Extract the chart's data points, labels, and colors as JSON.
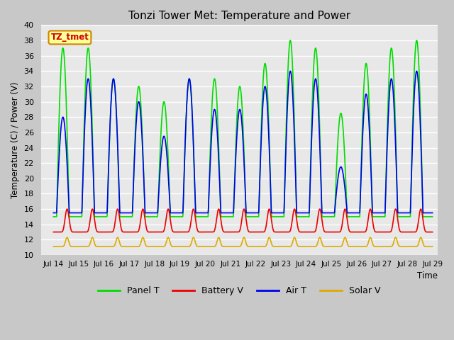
{
  "title": "Tonzi Tower Met: Temperature and Power",
  "ylabel": "Temperature (C) / Power (V)",
  "xlabel": "Time",
  "ylim": [
    10,
    40
  ],
  "yticks": [
    10,
    12,
    14,
    16,
    18,
    20,
    22,
    24,
    26,
    28,
    30,
    32,
    34,
    36,
    38,
    40
  ],
  "xlim_days": [
    13.5,
    29.2
  ],
  "xtick_days": [
    14,
    15,
    16,
    17,
    18,
    19,
    20,
    21,
    22,
    23,
    24,
    25,
    26,
    27,
    28,
    29
  ],
  "xtick_labels": [
    "Jul 14",
    "Jul 15",
    "Jul 16",
    "Jul 17",
    "Jul 18",
    "Jul 19",
    "Jul 20",
    "Jul 21",
    "Jul 22",
    "Jul 23",
    "Jul 24",
    "Jul 25",
    "Jul 26",
    "Jul 27",
    "Jul 28",
    "Jul 29"
  ],
  "colors": {
    "panel_t": "#00dd00",
    "battery_v": "#ee0000",
    "air_t": "#0000ee",
    "solar_v": "#ddaa00"
  },
  "legend_labels": [
    "Panel T",
    "Battery V",
    "Air T",
    "Solar V"
  ],
  "annotation_text": "TZ_tmet",
  "annotation_color": "#cc0000",
  "annotation_bg": "#ffff99",
  "annotation_border": "#cc8800",
  "plot_bg": "#e8e8e8",
  "fig_bg": "#c8c8c8",
  "grid_color": "#ffffff",
  "linewidth": 1.2,
  "panel_t_night": 15.0,
  "panel_t_peaks": [
    37,
    37,
    33,
    32,
    30,
    33,
    33,
    32,
    35,
    38,
    37,
    28.5,
    35,
    37,
    38
  ],
  "air_t_night": 15.5,
  "air_t_peaks": [
    28,
    33,
    33,
    30,
    25.5,
    33,
    29,
    29,
    32,
    34,
    33,
    21.5,
    31,
    33,
    34
  ],
  "battery_v_base": 13.0,
  "battery_v_peak": 16.0,
  "solar_v_base": 11.1,
  "solar_v_peak": 12.3
}
